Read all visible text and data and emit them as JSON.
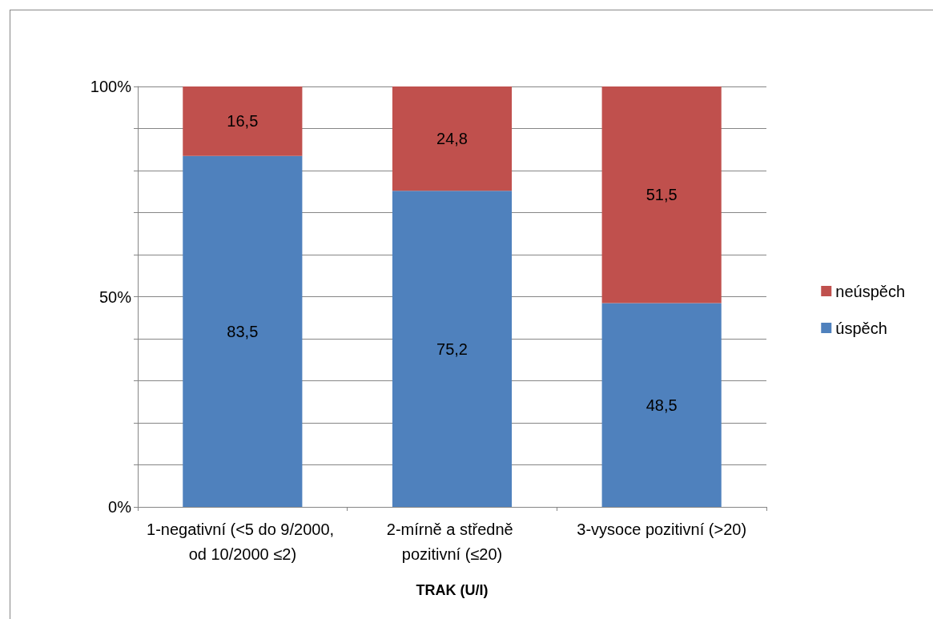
{
  "chart_data": {
    "type": "bar",
    "stacked": true,
    "xlabel": "TRAK (U/I)",
    "categories": [
      "1-negativní (<5 do 9/2000, od 10/2000 ≤2)",
      "2-mírně a středně pozitivní (≤20)",
      "3-vysoce pozitivní (>20)"
    ],
    "series": [
      {
        "name": "úspěch",
        "color": "#4f81bd",
        "values": [
          83.5,
          75.2,
          48.5
        ],
        "value_labels": [
          "83,5",
          "75,2",
          "48,5"
        ]
      },
      {
        "name": "neúspěch",
        "color": "#c0504d",
        "values": [
          16.5,
          24.8,
          51.5
        ],
        "value_labels": [
          "16,5",
          "24,8",
          "51,5"
        ]
      }
    ],
    "ylim": [
      0,
      100
    ],
    "yticks": [
      {
        "value": 0,
        "label": "0%"
      },
      {
        "value": 10,
        "label": null
      },
      {
        "value": 20,
        "label": null
      },
      {
        "value": 30,
        "label": null
      },
      {
        "value": 40,
        "label": null
      },
      {
        "value": 50,
        "label": "50%"
      },
      {
        "value": 60,
        "label": null
      },
      {
        "value": 70,
        "label": null
      },
      {
        "value": 80,
        "label": null
      },
      {
        "value": 90,
        "label": null
      },
      {
        "value": 100,
        "label": "100%"
      }
    ],
    "grid": "y",
    "legend": "right"
  }
}
